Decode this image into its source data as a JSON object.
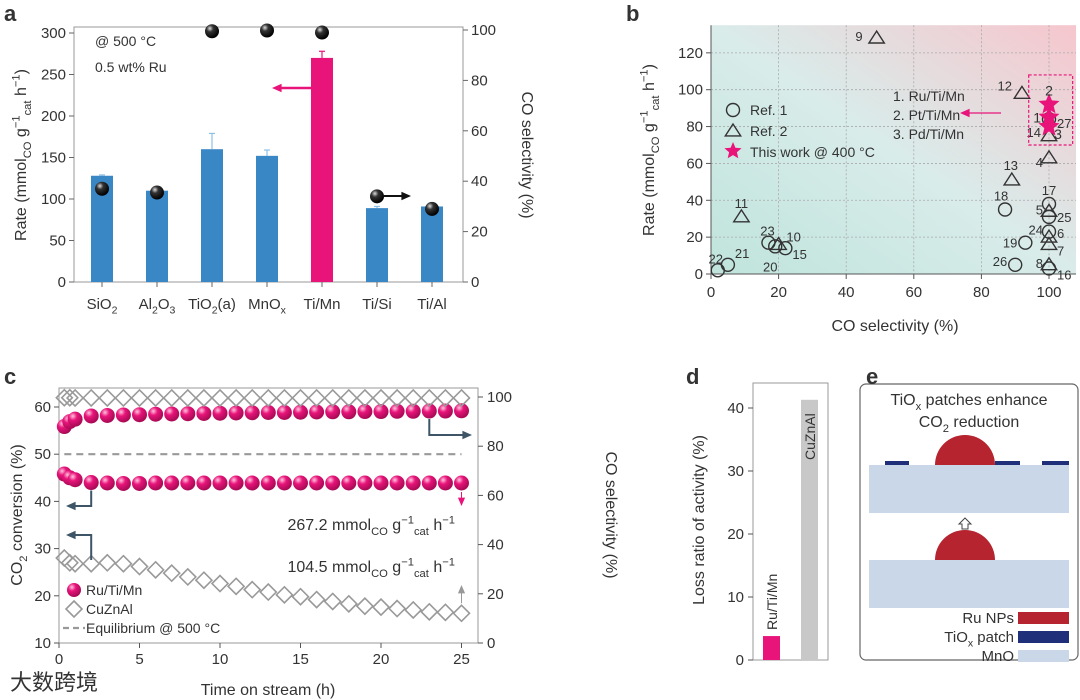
{
  "colors": {
    "blue": "#3a87c6",
    "pink": "#e8147a",
    "gray": "#c8c8c8",
    "dark": "#3d5566",
    "ru": "#b5242f",
    "tiox": "#1f2f7a",
    "mno": "#c9d7e8"
  },
  "panel_letters": [
    "a",
    "b",
    "c",
    "d",
    "e"
  ],
  "watermark": "大数跨境",
  "chart_data": [
    {
      "panel": "a",
      "type": "bar",
      "categories": [
        "SiO_{2}",
        "Al_{2}O_{3}",
        "TiO_{2}(a)",
        "MnO_{x}",
        "Ti/Mn",
        "Ti/Si",
        "Ti/Al"
      ],
      "highlight": "Ti/Mn",
      "values": [
        128,
        110,
        160,
        152,
        270,
        89,
        91
      ],
      "error_upper": [
        129,
        110,
        179,
        159,
        278,
        91,
        91
      ],
      "selectivity": [
        37,
        35.5,
        99.5,
        99.8,
        99,
        34,
        29
      ],
      "ylabel": "Rate (mmol_{CO} g^{−1}_{cat} h^{−1})",
      "ylabel_right": "CO selectivity (%)",
      "ylim": [
        0,
        300
      ],
      "ylim_right": [
        0,
        100
      ],
      "yticks": [
        0,
        50,
        100,
        150,
        200,
        250,
        300
      ],
      "yticks_right": [
        0,
        20,
        40,
        60,
        80,
        100
      ],
      "annotations": [
        "@ 500 °C",
        "0.5 wt% Ru"
      ]
    },
    {
      "panel": "b",
      "type": "scatter",
      "xlabel": "CO selectivity (%)",
      "ylabel": "Rate (mmol_{CO} g^{−1}_{cat} h^{−1})",
      "xlim": [
        0,
        108
      ],
      "ylim": [
        0,
        135
      ],
      "xticks": [
        0,
        20,
        40,
        60,
        80,
        100
      ],
      "yticks": [
        0,
        20,
        40,
        60,
        80,
        100,
        120
      ],
      "grid": true,
      "legend": [
        {
          "marker": "circle",
          "label": "Ref. 1"
        },
        {
          "marker": "triangle",
          "label": "Ref. 2"
        },
        {
          "marker": "star",
          "label": "This work @ 400 °C"
        }
      ],
      "legend_placement": "left",
      "points": [
        {
          "label": "9",
          "marker": "triangle",
          "x": 49,
          "y": 128
        },
        {
          "label": "12",
          "marker": "triangle",
          "x": 92,
          "y": 98
        },
        {
          "label": "11",
          "marker": "triangle",
          "x": 9,
          "y": 31
        },
        {
          "label": "13",
          "marker": "triangle",
          "x": 89,
          "y": 51
        },
        {
          "label": "4",
          "marker": "triangle",
          "x": 100,
          "y": 63
        },
        {
          "label": "14",
          "marker": "triangle",
          "x": 100,
          "y": 75
        },
        {
          "label": "27",
          "marker": "circle",
          "x": 100,
          "y": 84
        },
        {
          "label": "17",
          "marker": "circle",
          "x": 100,
          "y": 38
        },
        {
          "label": "18",
          "marker": "circle",
          "x": 87,
          "y": 35
        },
        {
          "label": "5",
          "marker": "triangle",
          "x": 100,
          "y": 34
        },
        {
          "label": "25",
          "marker": "circle",
          "x": 100,
          "y": 31
        },
        {
          "label": "24",
          "marker": "circle",
          "x": 100,
          "y": 23
        },
        {
          "label": "6",
          "marker": "triangle",
          "x": 100,
          "y": 20
        },
        {
          "label": "7",
          "marker": "triangle",
          "x": 100,
          "y": 16
        },
        {
          "label": "19",
          "marker": "circle",
          "x": 93,
          "y": 17
        },
        {
          "label": "26",
          "marker": "circle",
          "x": 90,
          "y": 5
        },
        {
          "label": "8",
          "marker": "triangle",
          "x": 100,
          "y": 5
        },
        {
          "label": "16",
          "marker": "circle",
          "x": 100,
          "y": 3
        },
        {
          "label": "23",
          "marker": "circle",
          "x": 17,
          "y": 17
        },
        {
          "label": "10",
          "marker": "triangle",
          "x": 20,
          "y": 16
        },
        {
          "label": "20",
          "marker": "circle",
          "x": 19,
          "y": 15
        },
        {
          "label": "15",
          "marker": "circle",
          "x": 22,
          "y": 14
        },
        {
          "label": "22",
          "marker": "circle",
          "x": 2,
          "y": 2
        },
        {
          "label": "21",
          "marker": "circle",
          "x": 5,
          "y": 5
        }
      ],
      "this_work": [
        {
          "label": "1",
          "name": "Ru/Ti/Mn",
          "x": 100,
          "y": 85
        },
        {
          "label": "2",
          "name": "Pt/Ti/Mn",
          "x": 100,
          "y": 92
        },
        {
          "label": "3",
          "name": "Pd/Ti/Mn",
          "x": 100,
          "y": 80
        }
      ],
      "this_work_legend": [
        "1. Ru/Ti/Mn",
        "2. Pt/Ti/Mn",
        "3. Pd/Ti/Mn"
      ]
    },
    {
      "panel": "c",
      "type": "scatter",
      "xlabel": "Time on stream (h)",
      "ylabel": "CO_{2} conversion (%)",
      "ylabel_right": "CO selectivity (%)",
      "xlim": [
        0,
        26
      ],
      "ylim": [
        10,
        64
      ],
      "ylim_right": [
        0,
        103.5
      ],
      "xticks": [
        0,
        5,
        10,
        15,
        20,
        25
      ],
      "yticks": [
        10,
        20,
        30,
        40,
        50,
        60
      ],
      "yticks_right": [
        0,
        20,
        40,
        60,
        80,
        100
      ],
      "x": [
        0.33,
        0.67,
        1,
        2,
        3,
        4,
        5,
        6,
        7,
        8,
        9,
        10,
        11,
        12,
        13,
        14,
        15,
        16,
        17,
        18,
        19,
        20,
        21,
        22,
        23,
        24,
        25
      ],
      "series": [
        {
          "name": "Ru/Ti/Mn",
          "metric": "conversion",
          "axis": "left",
          "values": [
            45.8,
            45,
            44.6,
            44,
            43.9,
            43.8,
            43.8,
            43.9,
            43.9,
            43.9,
            43.9,
            43.9,
            43.9,
            43.9,
            43.9,
            43.9,
            43.9,
            43.9,
            43.9,
            43.9,
            43.9,
            43.9,
            43.9,
            43.9,
            43.9,
            43.9,
            43.9
          ]
        },
        {
          "name": "Ru/Ti/Mn",
          "metric": "selectivity",
          "axis": "right",
          "values": [
            88,
            90,
            91,
            92.3,
            92.5,
            92.7,
            92.8,
            93,
            93.1,
            93.2,
            93.3,
            93.4,
            93.5,
            93.6,
            93.7,
            93.7,
            93.8,
            93.9,
            94,
            94,
            94.1,
            94.1,
            94.2,
            94.2,
            94.3,
            94.3,
            94.4
          ]
        },
        {
          "name": "CuZnAl",
          "metric": "conversion",
          "axis": "left",
          "values": [
            28,
            27,
            26.8,
            26.8,
            27,
            26.8,
            26.2,
            25.5,
            24.8,
            24,
            23.3,
            22.6,
            22,
            21.3,
            20.8,
            20.2,
            19.8,
            19.2,
            18.8,
            18.3,
            17.8,
            17.6,
            17.3,
            17,
            16.6,
            16.5,
            16.3
          ]
        },
        {
          "name": "CuZnAl",
          "metric": "selectivity",
          "axis": "right",
          "values": [
            99.7,
            99.7,
            99.6,
            99.6,
            99.6,
            99.6,
            99.6,
            99.6,
            99.6,
            99.6,
            99.6,
            99.6,
            99.6,
            99.6,
            99.6,
            99.6,
            99.6,
            99.6,
            99.6,
            99.6,
            99.6,
            99.6,
            99.6,
            99.6,
            99.6,
            99.6,
            99.6
          ]
        }
      ],
      "equilibrium": {
        "label": "Equilibrium @ 500 °C",
        "value": 50
      },
      "legend": [
        "Ru/Ti/Mn",
        "CuZnAl",
        "Equilibrium @ 500 °C"
      ],
      "legend_placement": "bottom-left",
      "annotations": [
        "267.2 mmol_{CO} g^{−1}_{cat} h^{−1}",
        "104.5 mmol_{CO} g^{−1}_{cat} h^{−1}"
      ]
    },
    {
      "panel": "d",
      "type": "bar",
      "categories": [
        "Ru/Ti/Mn",
        "CuZnAl"
      ],
      "values": [
        3.8,
        41.3
      ],
      "ylabel": "Loss ratio of activity (%)",
      "ylim": [
        0,
        44
      ],
      "yticks": [
        0,
        10,
        20,
        30,
        40
      ]
    }
  ],
  "schematic": {
    "title": [
      "TiO_{x} patches enhance",
      "CO_{2} reduction"
    ],
    "legend": [
      "Ru NPs",
      "TiO_{x} patch",
      "MnO"
    ]
  }
}
